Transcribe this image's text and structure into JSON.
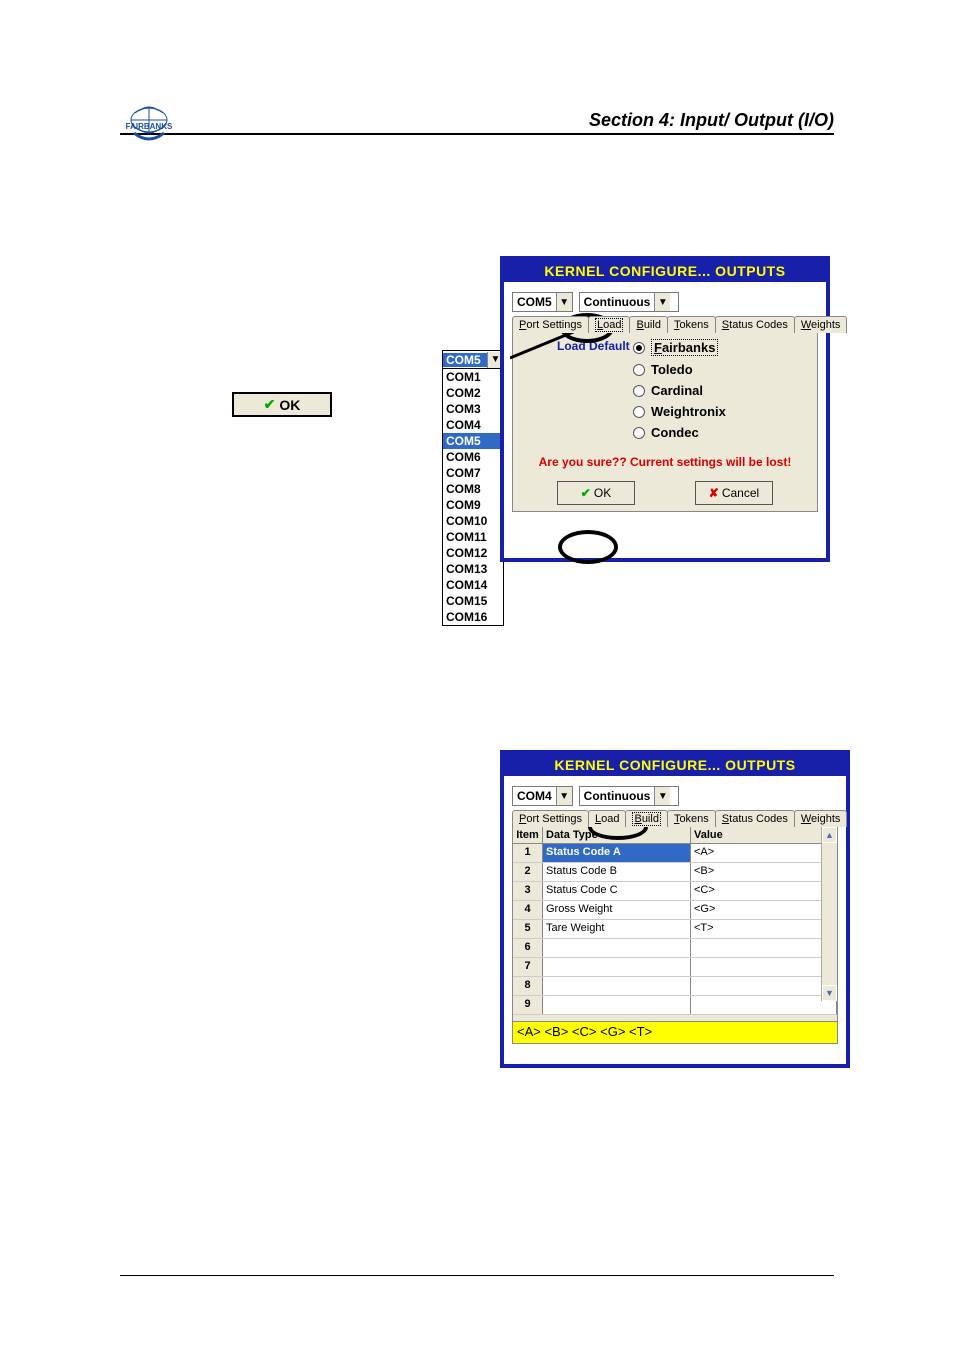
{
  "header": {
    "section_title": "Section 4: Input/ Output (I/O)"
  },
  "ok_standalone": {
    "label": "OK"
  },
  "com_dropdown": {
    "selected": "COM5",
    "highlighted_index": 4,
    "options": [
      "COM1",
      "COM2",
      "COM3",
      "COM4",
      "COM5",
      "COM6",
      "COM7",
      "COM8",
      "COM9",
      "COM10",
      "COM11",
      "COM12",
      "COM13",
      "COM14",
      "COM15",
      "COM16"
    ]
  },
  "dialog1": {
    "title": "KERNEL CONFIGURE... OUTPUTS",
    "port": "COM5",
    "mode": "Continuous",
    "tabs": [
      "Port Settings",
      "Load",
      "Build",
      "Tokens",
      "Status Codes",
      "Weights"
    ],
    "active_tab": 1,
    "fieldset_label": "Load Default",
    "radios": [
      "Fairbanks",
      "Toledo",
      "Cardinal",
      "Weightronix",
      "Condec"
    ],
    "selected_radio": 0,
    "confirm_text": "Are you sure?? Current settings will be lost!",
    "ok_label": "OK",
    "cancel_label": "Cancel"
  },
  "dialog2": {
    "title": "KERNEL CONFIGURE... OUTPUTS",
    "port": "COM4",
    "mode": "Continuous",
    "tabs": [
      "Port Settings",
      "Load",
      "Build",
      "Tokens",
      "Status Codes",
      "Weights"
    ],
    "active_tab": 2,
    "columns": [
      "Item",
      "Data Type",
      "Value"
    ],
    "rows": [
      {
        "n": "1",
        "dt": "Status Code A",
        "val": "<A>"
      },
      {
        "n": "2",
        "dt": "Status Code B",
        "val": "<B>"
      },
      {
        "n": "3",
        "dt": "Status Code C",
        "val": "<C>"
      },
      {
        "n": "4",
        "dt": "Gross Weight",
        "val": "<G>"
      },
      {
        "n": "5",
        "dt": "Tare Weight",
        "val": "<T>"
      },
      {
        "n": "6",
        "dt": "",
        "val": ""
      },
      {
        "n": "7",
        "dt": "",
        "val": ""
      },
      {
        "n": "8",
        "dt": "",
        "val": ""
      },
      {
        "n": "9",
        "dt": "",
        "val": ""
      }
    ],
    "footer": "<A> <B> <C> <G> <T>"
  },
  "colors": {
    "dialog_border": "#1820aa",
    "dialog_title_bg": "#1820aa",
    "dialog_title_fg": "#ffff00",
    "panel_bg": "#ece9d8",
    "highlight_bg": "#316ac5",
    "footer_bg": "#ffff00",
    "warn_text": "#d00",
    "check_green": "#00aa00",
    "x_red": "#d00"
  }
}
